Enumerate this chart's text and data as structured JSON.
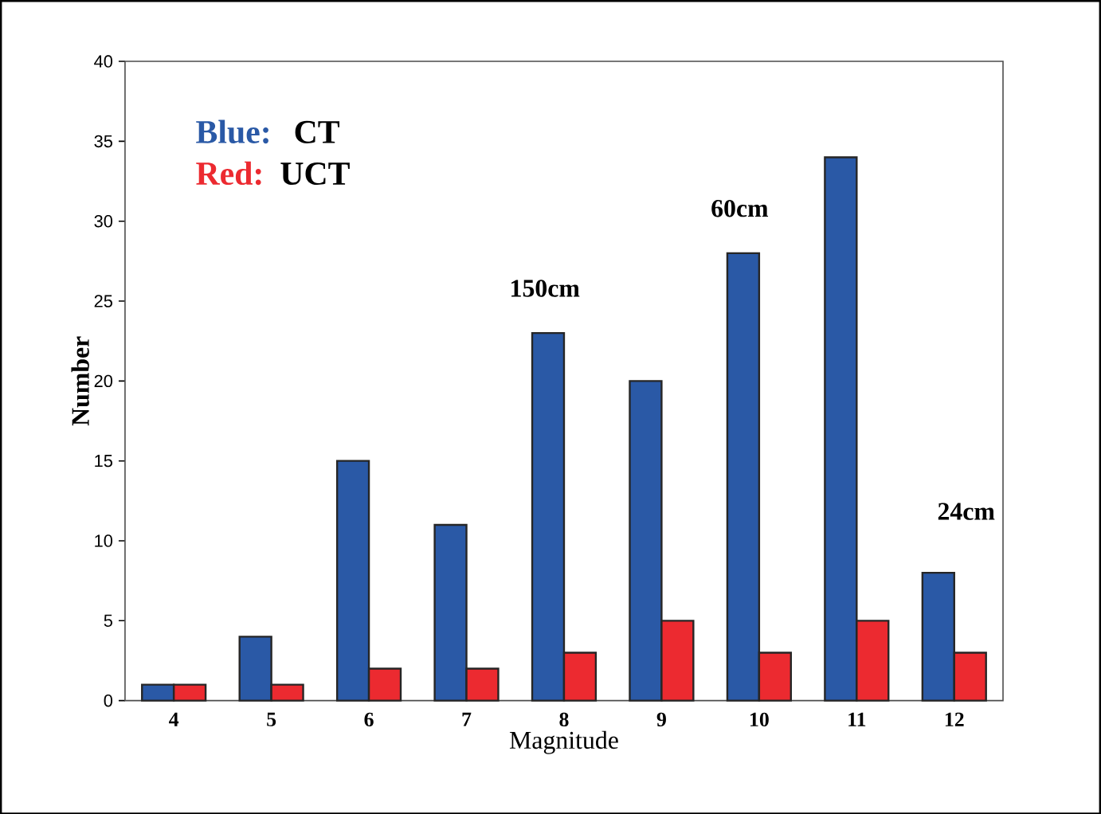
{
  "chart_data": {
    "type": "bar",
    "xlabel": "Magnitude",
    "ylabel": "Number",
    "categories": [
      "4",
      "5",
      "6",
      "7",
      "8",
      "9",
      "10",
      "11",
      "12"
    ],
    "series": [
      {
        "name": "Blue:",
        "color": "#2a59a6",
        "values": [
          1,
          4,
          15,
          11,
          23,
          20,
          28,
          34,
          8
        ]
      },
      {
        "name": "Red:",
        "color": "#ec2a30",
        "values": [
          1,
          1,
          2,
          2,
          3,
          5,
          3,
          5,
          3
        ]
      }
    ],
    "ylim": [
      0,
      40
    ],
    "yticks": [
      0,
      5,
      10,
      15,
      20,
      25,
      30,
      35,
      40
    ],
    "legend": "top left",
    "grid": false,
    "annotations": [
      "CT",
      "UCT",
      "150cm",
      "60cm",
      "24cm"
    ]
  }
}
